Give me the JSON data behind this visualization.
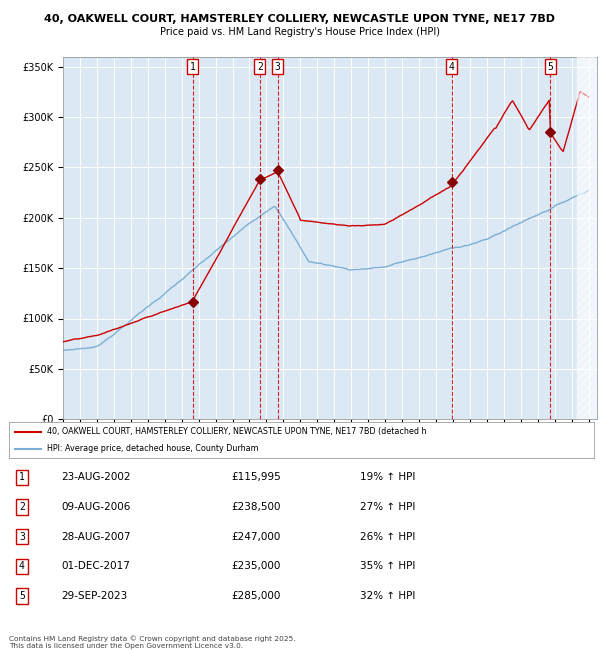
{
  "title_line1": "40, OAKWELL COURT, HAMSTERLEY COLLIERY, NEWCASTLE UPON TYNE, NE17 7BD",
  "title_line2": "Price paid vs. HM Land Registry's House Price Index (HPI)",
  "plot_bg": "#dce9f5",
  "ylim": [
    0,
    360000
  ],
  "yticks": [
    0,
    50000,
    100000,
    150000,
    200000,
    250000,
    300000,
    350000
  ],
  "ytick_labels": [
    "£0",
    "£50K",
    "£100K",
    "£150K",
    "£200K",
    "£250K",
    "£300K",
    "£350K"
  ],
  "sale_markers": [
    {
      "num": 1,
      "year": 2002.64,
      "price": 115995,
      "label": "1"
    },
    {
      "num": 2,
      "year": 2006.61,
      "price": 238500,
      "label": "2"
    },
    {
      "num": 3,
      "year": 2007.66,
      "price": 247000,
      "label": "3"
    },
    {
      "num": 4,
      "year": 2017.92,
      "price": 235000,
      "label": "4"
    },
    {
      "num": 5,
      "year": 2023.75,
      "price": 285000,
      "label": "5"
    }
  ],
  "legend_red_label": "40, OAKWELL COURT, HAMSTERLEY COLLIERY, NEWCASTLE UPON TYNE, NE17 7BD (detached h",
  "legend_blue_label": "HPI: Average price, detached house, County Durham",
  "table_rows": [
    {
      "num": 1,
      "date": "23-AUG-2002",
      "price": "£115,995",
      "hpi": "19% ↑ HPI"
    },
    {
      "num": 2,
      "date": "09-AUG-2006",
      "price": "£238,500",
      "hpi": "27% ↑ HPI"
    },
    {
      "num": 3,
      "date": "28-AUG-2007",
      "price": "£247,000",
      "hpi": "26% ↑ HPI"
    },
    {
      "num": 4,
      "date": "01-DEC-2017",
      "price": "£235,000",
      "hpi": "35% ↑ HPI"
    },
    {
      "num": 5,
      "date": "29-SEP-2023",
      "price": "£285,000",
      "hpi": "32% ↑ HPI"
    }
  ],
  "footer": "Contains HM Land Registry data © Crown copyright and database right 2025.\nThis data is licensed under the Open Government Licence v3.0.",
  "red_color": "#cc0000",
  "blue_color": "#7bafd4",
  "marker_color": "#880000",
  "xmin": 1995,
  "xmax": 2026.5
}
